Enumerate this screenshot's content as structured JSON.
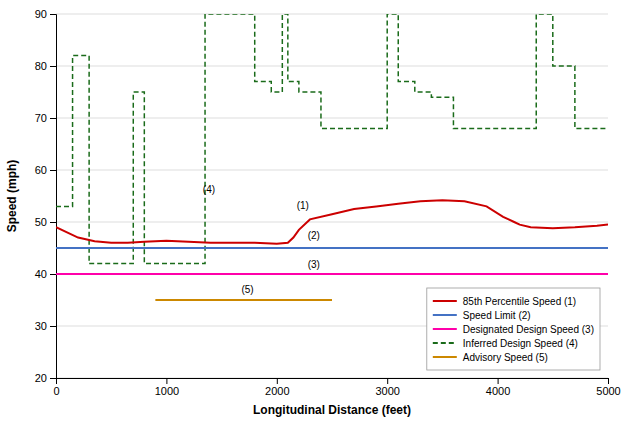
{
  "chart_data": {
    "type": "line",
    "xlabel": "Longitudinal Distance (feet)",
    "ylabel": "Speed (mph)",
    "xlim": [
      0,
      5000
    ],
    "ylim": [
      20,
      90
    ],
    "xticks": [
      0,
      1000,
      2000,
      3000,
      4000,
      5000
    ],
    "yticks": [
      20,
      30,
      40,
      50,
      60,
      70,
      80,
      90
    ],
    "grid": "y",
    "legend": "lower right",
    "series": [
      {
        "name": "85th Percentile Speed (1)",
        "color": "#cc0000",
        "x": [
          0,
          200,
          350,
          500,
          650,
          800,
          1000,
          1200,
          1400,
          1600,
          1800,
          2000,
          2100,
          2150,
          2200,
          2300,
          2500,
          2700,
          2900,
          3100,
          3300,
          3500,
          3700,
          3900,
          4050,
          4100,
          4150,
          4200,
          4300,
          4500,
          4700,
          4900,
          5000
        ],
        "values": [
          49,
          47.0,
          46.3,
          46.0,
          46.0,
          46.2,
          46.4,
          46.2,
          46.0,
          46.0,
          46.0,
          45.8,
          46.0,
          47.0,
          48.5,
          50.5,
          51.5,
          52.5,
          53.0,
          53.5,
          54.0,
          54.2,
          54.0,
          53.0,
          51.0,
          50.5,
          50.0,
          49.5,
          49.0,
          48.8,
          49.0,
          49.3,
          49.5
        ]
      },
      {
        "name": "Speed Limit (2)",
        "color": "#4472c4",
        "type": "hline",
        "values": [
          45
        ]
      },
      {
        "name": "Designated Design Speed (3)",
        "color": "#ff00aa",
        "type": "hline",
        "values": [
          40
        ]
      },
      {
        "name": "Inferred Design Speed (4)",
        "color": "#1a6b1a",
        "line_style": "dashed",
        "x": [
          0,
          0,
          150,
          150,
          300,
          300,
          700,
          700,
          800,
          800,
          1350,
          1350,
          1800,
          1800,
          1950,
          1950,
          2050,
          2050,
          2100,
          2100,
          2200,
          2200,
          2400,
          2400,
          2500,
          2500,
          3000,
          3000,
          3100,
          3100,
          3250,
          3250,
          3400,
          3400,
          3600,
          3600,
          4200,
          4200,
          4350,
          4350,
          4500,
          4500,
          4700,
          4700,
          5000,
          5000
        ],
        "values": [
          53,
          53,
          53,
          82,
          82,
          42,
          42,
          75,
          75,
          42,
          42,
          90,
          90,
          77,
          77,
          75,
          75,
          90,
          90,
          77,
          77,
          75,
          75,
          68,
          68,
          68,
          68,
          90,
          90,
          77,
          77,
          75,
          75,
          74,
          74,
          68,
          68,
          68,
          68,
          90,
          90,
          80,
          80,
          68,
          68,
          68
        ]
      },
      {
        "name": "Advisory Speed (5)",
        "color": "#cc8800",
        "x": [
          900,
          2500
        ],
        "values": [
          35,
          35
        ]
      }
    ],
    "annotations": [
      {
        "text": "(1)",
        "x": 2180,
        "y": 52.5
      },
      {
        "text": "(2)",
        "x": 2280,
        "y": 46.8
      },
      {
        "text": "(3)",
        "x": 2280,
        "y": 41.2
      },
      {
        "text": "(4)",
        "x": 1330,
        "y": 55.5
      },
      {
        "text": "(5)",
        "x": 1680,
        "y": 36.3
      }
    ]
  }
}
